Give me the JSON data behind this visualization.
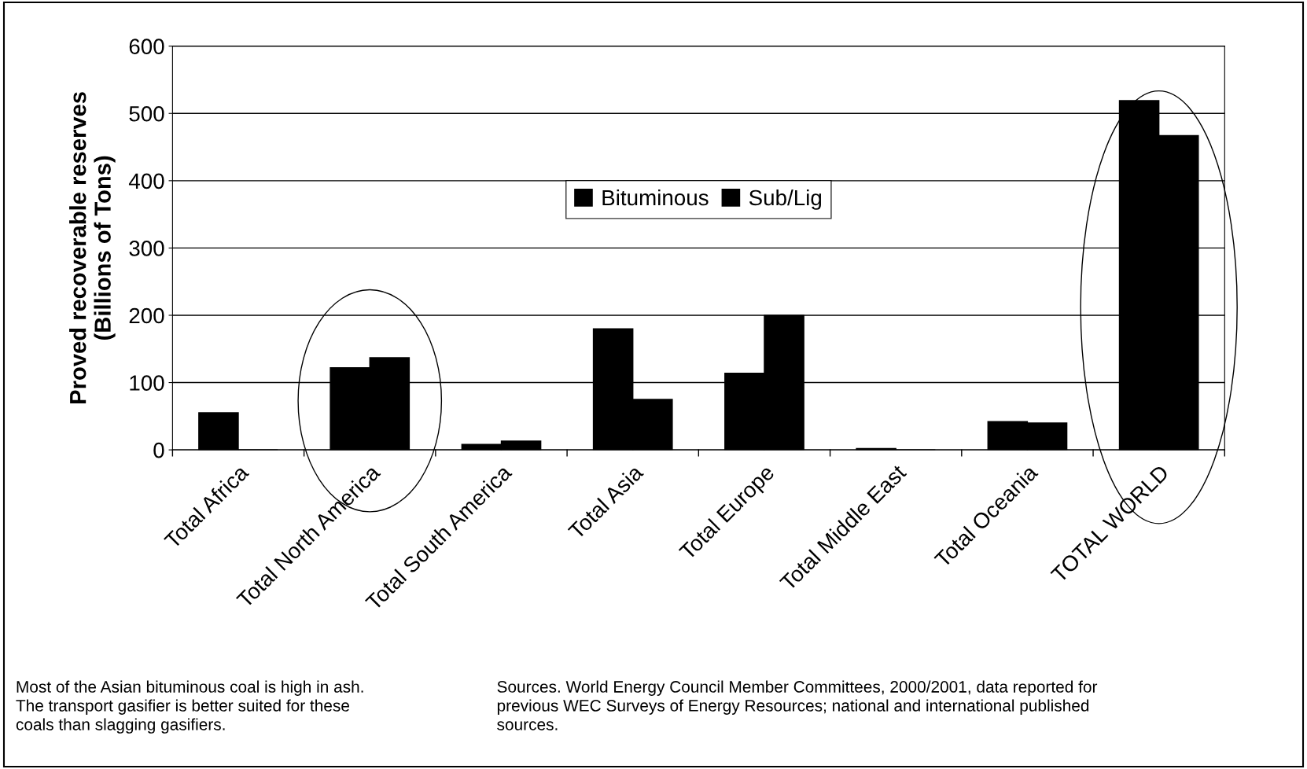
{
  "chart_data": {
    "type": "bar",
    "ylabel": "Proved recoverable reserves\n(Billions of Tons)",
    "categories": [
      "Total Africa",
      "Total North America",
      "Total South America",
      "Total Asia",
      "Total Europe",
      "Total Middle East",
      "Total Oceania",
      "TOTAL WORLD"
    ],
    "series": [
      {
        "name": "Bituminous",
        "color": "#000000",
        "values": [
          55,
          122,
          8,
          180,
          114,
          2,
          42,
          519
        ]
      },
      {
        "name": "Sub/Lig",
        "color": "#000000",
        "values": [
          0,
          137,
          13,
          75,
          200,
          0,
          40,
          467
        ]
      }
    ],
    "ylim": [
      0,
      600
    ],
    "yticks": [
      0,
      100,
      200,
      300,
      400,
      500,
      600
    ],
    "grid": "y",
    "legend": "top",
    "annotations": [
      "Most of the Asian bituminous coal is high in ash.\nThe transport gasifier is better suited for these\ncoals than slagging gasifiers.",
      "Sources. World Energy Council Member Committees, 2000/2001, data reported for\nprevious WEC Surveys of Energy Resources; national and international published\nsources."
    ]
  }
}
